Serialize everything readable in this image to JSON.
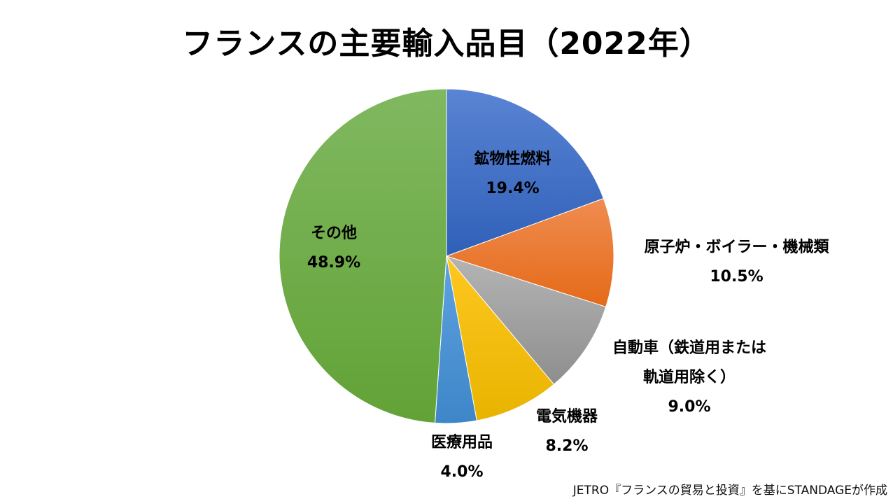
{
  "chart_data": {
    "type": "pie",
    "title": "フランスの主要輸入品目（2022年）",
    "start_angle_deg": 0,
    "direction": "clockwise",
    "slices": [
      {
        "label": "鉱物性燃料",
        "value": 19.4,
        "display": "19.4%",
        "color_top": "#5A84D4",
        "color_bottom": "#2F60B8"
      },
      {
        "label": "原子炉・ボイラー・機械類",
        "value": 10.5,
        "display": "10.5%",
        "color_top": "#F08C50",
        "color_bottom": "#E46A18"
      },
      {
        "label": "自動車（鉄道用または軌道用除く）",
        "label_lines": [
          "自動車（鉄道用または",
          "軌道用除く）"
        ],
        "value": 9.0,
        "display": "9.0%",
        "color_top": "#B4B4B4",
        "color_bottom": "#8E8E8E"
      },
      {
        "label": "電気機器",
        "value": 8.2,
        "display": "8.2%",
        "color_top": "#FFC720",
        "color_bottom": "#E8B400"
      },
      {
        "label": "医療用品",
        "value": 4.0,
        "display": "4.0%",
        "color_top": "#5EA2E0",
        "color_bottom": "#3E86C8"
      },
      {
        "label": "その他",
        "value": 48.9,
        "display": "48.9%",
        "color_top": "#80B860",
        "color_bottom": "#62A236"
      }
    ],
    "legend": "none (data labels)"
  },
  "source_note": "JETRO『フランスの貿易と投資』を基にSTANDAGEが作成"
}
